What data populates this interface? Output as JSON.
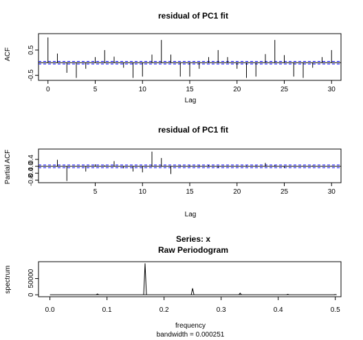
{
  "chart_data": [
    {
      "type": "bar",
      "title": "residual of PC1 fit",
      "xlabel": "Lag",
      "ylabel": "ACF",
      "xlim": [
        0,
        30
      ],
      "ylim": [
        -0.6,
        1.05
      ],
      "xticks": [
        "0",
        "5",
        "10",
        "15",
        "20",
        "25",
        "30"
      ],
      "yticks": [
        "-0.5",
        "0.5"
      ],
      "ytick_values": [
        -0.5,
        0.5
      ],
      "ci": 0.05,
      "ci_color": "#0000ff",
      "lags": [
        0,
        1,
        2,
        3,
        4,
        5,
        6,
        7,
        8,
        9,
        10,
        11,
        12,
        13,
        14,
        15,
        16,
        17,
        18,
        19,
        20,
        21,
        22,
        23,
        24,
        25,
        26,
        27,
        28,
        29,
        30
      ],
      "values": [
        1.0,
        0.36,
        -0.4,
        -0.6,
        -0.24,
        0.22,
        0.5,
        0.24,
        -0.2,
        -0.6,
        -0.55,
        0.32,
        0.9,
        0.32,
        -0.55,
        -0.55,
        -0.24,
        0.22,
        0.5,
        0.22,
        -0.24,
        -0.6,
        -0.55,
        0.34,
        0.9,
        0.3,
        -0.55,
        -0.6,
        -0.2,
        0.22,
        0.5
      ]
    },
    {
      "type": "bar",
      "title": "residual of PC1 fit",
      "xlabel": "Lag",
      "ylabel": "Partial ACF",
      "xlim": [
        1,
        30
      ],
      "ylim": [
        -0.85,
        0.9
      ],
      "xticks": [
        "5",
        "10",
        "15",
        "20",
        "25",
        "30"
      ],
      "yticks": [
        "-0.8",
        "-0.4",
        "0.0",
        "0.4"
      ],
      "ytick_values": [
        -0.8,
        -0.4,
        0.0,
        0.4
      ],
      "ci": 0.08,
      "ci_color": "#0000ff",
      "lags": [
        1,
        2,
        3,
        4,
        5,
        6,
        7,
        8,
        9,
        10,
        11,
        12,
        13,
        14,
        15,
        16,
        17,
        18,
        19,
        20,
        21,
        22,
        23,
        24,
        25,
        26,
        27,
        28,
        29,
        30
      ],
      "values": [
        0.38,
        -0.85,
        0.02,
        -0.3,
        0.12,
        0.06,
        0.3,
        -0.12,
        -0.3,
        -0.35,
        0.85,
        0.48,
        -0.45,
        0.04,
        0.04,
        0.04,
        0.06,
        -0.08,
        0.02,
        -0.02,
        0.04,
        0.04,
        0.2,
        0.06,
        -0.1,
        0.02,
        0.03,
        0.04,
        -0.02,
        0.03
      ]
    },
    {
      "type": "line",
      "title": "Series: x",
      "subtitle": "Raw Periodogram",
      "xlabel": "frequency",
      "xlabel2": "bandwidth = 0.000251",
      "ylabel": "spectrum",
      "xlim": [
        0,
        0.5
      ],
      "ylim": [
        0,
        100000
      ],
      "xticks": [
        "0.0",
        "0.1",
        "0.2",
        "0.3",
        "0.4",
        "0.5"
      ],
      "xtick_values": [
        0.0,
        0.1,
        0.2,
        0.3,
        0.4,
        0.5
      ],
      "yticks": [
        "0",
        "50000"
      ],
      "ytick_values": [
        0,
        50000
      ],
      "peaks": [
        {
          "x": 0.0833,
          "y": 2500
        },
        {
          "x": 0.1667,
          "y": 97000
        },
        {
          "x": 0.25,
          "y": 20000
        },
        {
          "x": 0.3333,
          "y": 5000
        },
        {
          "x": 0.4167,
          "y": 1500
        },
        {
          "x": 0.5,
          "y": 800
        }
      ]
    }
  ]
}
